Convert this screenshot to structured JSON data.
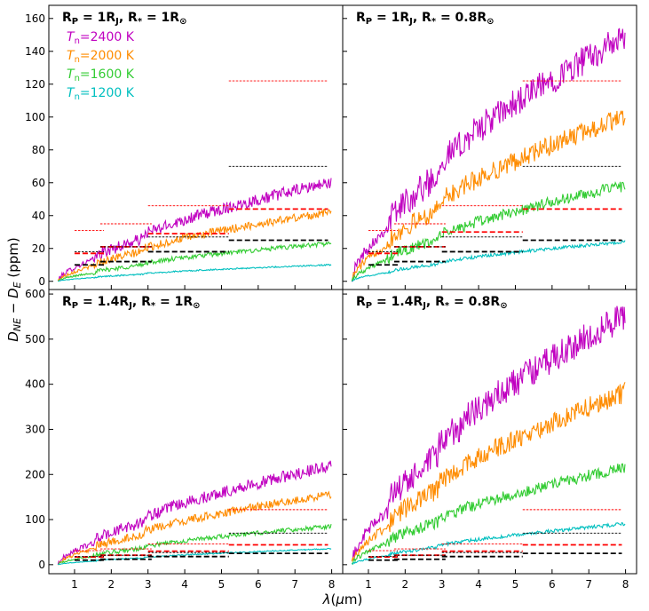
{
  "chart_data": {
    "type": "line",
    "xlabel": "λ(μm)",
    "ylabel": "D_NE − D_E (ppm)",
    "xlim": [
      0.3,
      8.3
    ],
    "xticks": [
      "1",
      "2",
      "3",
      "4",
      "5",
      "6",
      "7",
      "8"
    ],
    "legend": [
      {
        "label": "T_n=2400 K",
        "color": "#c000c0"
      },
      {
        "label": "T_n=2000 K",
        "color": "#ff8c00"
      },
      {
        "label": "T_n=1600 K",
        "color": "#33cc33"
      },
      {
        "label": "T_n=1200 K",
        "color": "#00bfbf"
      }
    ],
    "panels": [
      {
        "title": "R_P = 1R_J, R_* = 1R_⊙",
        "ylim": [
          -5,
          168
        ],
        "yticks": [
          "0",
          "20",
          "40",
          "60",
          "80",
          "100",
          "120",
          "140",
          "160"
        ],
        "series": [
          {
            "name": "T_n=2400 K",
            "color": "#c000c0",
            "end_value": 60
          },
          {
            "name": "T_n=2000 K",
            "color": "#ff8c00",
            "end_value": 42
          },
          {
            "name": "T_n=1600 K",
            "color": "#33cc33",
            "end_value": 23
          },
          {
            "name": "T_n=1200 K",
            "color": "#00bfbf",
            "end_value": 10
          }
        ],
        "reference_levels": [
          {
            "x": [
              1.0,
              1.8
            ],
            "y": 31,
            "color": "#ff0000",
            "style": "thin"
          },
          {
            "x": [
              1.7,
              3.1
            ],
            "y": 35,
            "color": "#ff0000",
            "style": "thin"
          },
          {
            "x": [
              3.0,
              5.2
            ],
            "y": 46,
            "color": "#ff0000",
            "style": "thin"
          },
          {
            "x": [
              5.2,
              7.9
            ],
            "y": 122,
            "color": "#ff0000",
            "style": "thin"
          },
          {
            "x": [
              1.0,
              1.8
            ],
            "y": 17,
            "color": "#ff0000",
            "style": "thick"
          },
          {
            "x": [
              1.7,
              3.1
            ],
            "y": 21,
            "color": "#ff0000",
            "style": "thick"
          },
          {
            "x": [
              3.0,
              5.2
            ],
            "y": 29,
            "color": "#ff0000",
            "style": "thick"
          },
          {
            "x": [
              5.2,
              7.9
            ],
            "y": 44,
            "color": "#ff0000",
            "style": "thick"
          },
          {
            "x": [
              1.0,
              1.8
            ],
            "y": 18,
            "color": "#000000",
            "style": "thin"
          },
          {
            "x": [
              1.7,
              3.1
            ],
            "y": 21,
            "color": "#000000",
            "style": "thin"
          },
          {
            "x": [
              3.0,
              5.2
            ],
            "y": 27,
            "color": "#000000",
            "style": "thin"
          },
          {
            "x": [
              5.2,
              7.9
            ],
            "y": 70,
            "color": "#000000",
            "style": "thin"
          },
          {
            "x": [
              1.0,
              1.8
            ],
            "y": 10,
            "color": "#000000",
            "style": "thick"
          },
          {
            "x": [
              1.7,
              3.1
            ],
            "y": 12,
            "color": "#000000",
            "style": "thick"
          },
          {
            "x": [
              3.0,
              5.2
            ],
            "y": 18,
            "color": "#000000",
            "style": "thick"
          },
          {
            "x": [
              5.2,
              7.9
            ],
            "y": 25,
            "color": "#000000",
            "style": "thick"
          }
        ]
      },
      {
        "title": "R_P = 1R_J, R_* = 0.8R_⊙",
        "ylim": [
          -5,
          168
        ],
        "yticks": [
          "0",
          "20",
          "40",
          "60",
          "80",
          "100",
          "120",
          "140",
          "160"
        ],
        "series": [
          {
            "name": "T_n=2400 K",
            "color": "#c000c0",
            "end_value": 148
          },
          {
            "name": "T_n=2000 K",
            "color": "#ff8c00",
            "end_value": 100
          },
          {
            "name": "T_n=1600 K",
            "color": "#33cc33",
            "end_value": 58
          },
          {
            "name": "T_n=1200 K",
            "color": "#00bfbf",
            "end_value": 24
          }
        ],
        "reference_levels": [
          {
            "x": [
              1.0,
              1.8
            ],
            "y": 31,
            "color": "#ff0000",
            "style": "thin"
          },
          {
            "x": [
              1.7,
              3.1
            ],
            "y": 35,
            "color": "#ff0000",
            "style": "thin"
          },
          {
            "x": [
              3.0,
              5.2
            ],
            "y": 46,
            "color": "#ff0000",
            "style": "thin"
          },
          {
            "x": [
              5.2,
              7.9
            ],
            "y": 122,
            "color": "#ff0000",
            "style": "thin"
          },
          {
            "x": [
              1.0,
              1.8
            ],
            "y": 17,
            "color": "#ff0000",
            "style": "thick"
          },
          {
            "x": [
              1.7,
              3.1
            ],
            "y": 21,
            "color": "#ff0000",
            "style": "thick"
          },
          {
            "x": [
              3.0,
              5.2
            ],
            "y": 30,
            "color": "#ff0000",
            "style": "thick"
          },
          {
            "x": [
              5.2,
              7.9
            ],
            "y": 44,
            "color": "#ff0000",
            "style": "thick"
          },
          {
            "x": [
              1.0,
              1.8
            ],
            "y": 18,
            "color": "#000000",
            "style": "thin"
          },
          {
            "x": [
              1.7,
              3.1
            ],
            "y": 21,
            "color": "#000000",
            "style": "thin"
          },
          {
            "x": [
              3.0,
              5.2
            ],
            "y": 27,
            "color": "#000000",
            "style": "thin"
          },
          {
            "x": [
              5.2,
              7.9
            ],
            "y": 70,
            "color": "#000000",
            "style": "thin"
          },
          {
            "x": [
              1.0,
              1.8
            ],
            "y": 10,
            "color": "#000000",
            "style": "thick"
          },
          {
            "x": [
              1.7,
              3.1
            ],
            "y": 12,
            "color": "#000000",
            "style": "thick"
          },
          {
            "x": [
              3.0,
              5.2
            ],
            "y": 18,
            "color": "#000000",
            "style": "thick"
          },
          {
            "x": [
              5.2,
              7.9
            ],
            "y": 25,
            "color": "#000000",
            "style": "thick"
          }
        ]
      },
      {
        "title": "R_P = 1.4R_J, R_* = 1R_⊙",
        "ylim": [
          -20,
          610
        ],
        "yticks": [
          "0",
          "100",
          "200",
          "300",
          "400",
          "500",
          "600"
        ],
        "series": [
          {
            "name": "T_n=2400 K",
            "color": "#c000c0",
            "end_value": 218
          },
          {
            "name": "T_n=2000 K",
            "color": "#ff8c00",
            "end_value": 155
          },
          {
            "name": "T_n=1600 K",
            "color": "#33cc33",
            "end_value": 85
          },
          {
            "name": "T_n=1200 K",
            "color": "#00bfbf",
            "end_value": 35
          }
        ],
        "reference_levels": [
          {
            "x": [
              1.0,
              1.8
            ],
            "y": 31,
            "color": "#ff0000",
            "style": "thin"
          },
          {
            "x": [
              1.7,
              3.1
            ],
            "y": 35,
            "color": "#ff0000",
            "style": "thin"
          },
          {
            "x": [
              3.0,
              5.2
            ],
            "y": 46,
            "color": "#ff0000",
            "style": "thin"
          },
          {
            "x": [
              5.2,
              7.9
            ],
            "y": 122,
            "color": "#ff0000",
            "style": "thin"
          },
          {
            "x": [
              1.0,
              1.8
            ],
            "y": 17,
            "color": "#ff0000",
            "style": "thick"
          },
          {
            "x": [
              1.7,
              3.1
            ],
            "y": 21,
            "color": "#ff0000",
            "style": "thick"
          },
          {
            "x": [
              3.0,
              5.2
            ],
            "y": 30,
            "color": "#ff0000",
            "style": "thick"
          },
          {
            "x": [
              5.2,
              7.9
            ],
            "y": 44,
            "color": "#ff0000",
            "style": "thick"
          },
          {
            "x": [
              1.0,
              1.8
            ],
            "y": 18,
            "color": "#000000",
            "style": "thin"
          },
          {
            "x": [
              1.7,
              3.1
            ],
            "y": 21,
            "color": "#000000",
            "style": "thin"
          },
          {
            "x": [
              3.0,
              5.2
            ],
            "y": 27,
            "color": "#000000",
            "style": "thin"
          },
          {
            "x": [
              5.2,
              7.9
            ],
            "y": 70,
            "color": "#000000",
            "style": "thin"
          },
          {
            "x": [
              1.0,
              1.8
            ],
            "y": 10,
            "color": "#000000",
            "style": "thick"
          },
          {
            "x": [
              1.7,
              3.1
            ],
            "y": 12,
            "color": "#000000",
            "style": "thick"
          },
          {
            "x": [
              3.0,
              5.2
            ],
            "y": 18,
            "color": "#000000",
            "style": "thick"
          },
          {
            "x": [
              5.2,
              7.9
            ],
            "y": 25,
            "color": "#000000",
            "style": "thick"
          }
        ]
      },
      {
        "title": "R_P = 1.4R_J, R_* = 0.8R_⊙",
        "ylim": [
          -20,
          610
        ],
        "yticks": [
          "0",
          "100",
          "200",
          "300",
          "400",
          "500",
          "600"
        ],
        "series": [
          {
            "name": "T_n=2400 K",
            "color": "#c000c0",
            "end_value": 550
          },
          {
            "name": "T_n=2000 K",
            "color": "#ff8c00",
            "end_value": 380
          },
          {
            "name": "T_n=1600 K",
            "color": "#33cc33",
            "end_value": 215
          },
          {
            "name": "T_n=1200 K",
            "color": "#00bfbf",
            "end_value": 90
          }
        ],
        "reference_levels": [
          {
            "x": [
              1.0,
              1.8
            ],
            "y": 31,
            "color": "#ff0000",
            "style": "thin"
          },
          {
            "x": [
              1.7,
              3.1
            ],
            "y": 35,
            "color": "#ff0000",
            "style": "thin"
          },
          {
            "x": [
              3.0,
              5.2
            ],
            "y": 46,
            "color": "#ff0000",
            "style": "thin"
          },
          {
            "x": [
              5.2,
              7.9
            ],
            "y": 122,
            "color": "#ff0000",
            "style": "thin"
          },
          {
            "x": [
              1.0,
              1.8
            ],
            "y": 17,
            "color": "#ff0000",
            "style": "thick"
          },
          {
            "x": [
              1.7,
              3.1
            ],
            "y": 21,
            "color": "#ff0000",
            "style": "thick"
          },
          {
            "x": [
              3.0,
              5.2
            ],
            "y": 30,
            "color": "#ff0000",
            "style": "thick"
          },
          {
            "x": [
              5.2,
              7.9
            ],
            "y": 44,
            "color": "#ff0000",
            "style": "thick"
          },
          {
            "x": [
              1.0,
              1.8
            ],
            "y": 18,
            "color": "#000000",
            "style": "thin"
          },
          {
            "x": [
              1.7,
              3.1
            ],
            "y": 21,
            "color": "#000000",
            "style": "thin"
          },
          {
            "x": [
              3.0,
              5.2
            ],
            "y": 27,
            "color": "#000000",
            "style": "thin"
          },
          {
            "x": [
              5.2,
              7.9
            ],
            "y": 70,
            "color": "#000000",
            "style": "thin"
          },
          {
            "x": [
              1.0,
              1.8
            ],
            "y": 10,
            "color": "#000000",
            "style": "thick"
          },
          {
            "x": [
              1.7,
              3.1
            ],
            "y": 12,
            "color": "#000000",
            "style": "thick"
          },
          {
            "x": [
              3.0,
              5.2
            ],
            "y": 18,
            "color": "#000000",
            "style": "thick"
          },
          {
            "x": [
              5.2,
              7.9
            ],
            "y": 25,
            "color": "#000000",
            "style": "thick"
          }
        ]
      }
    ]
  }
}
